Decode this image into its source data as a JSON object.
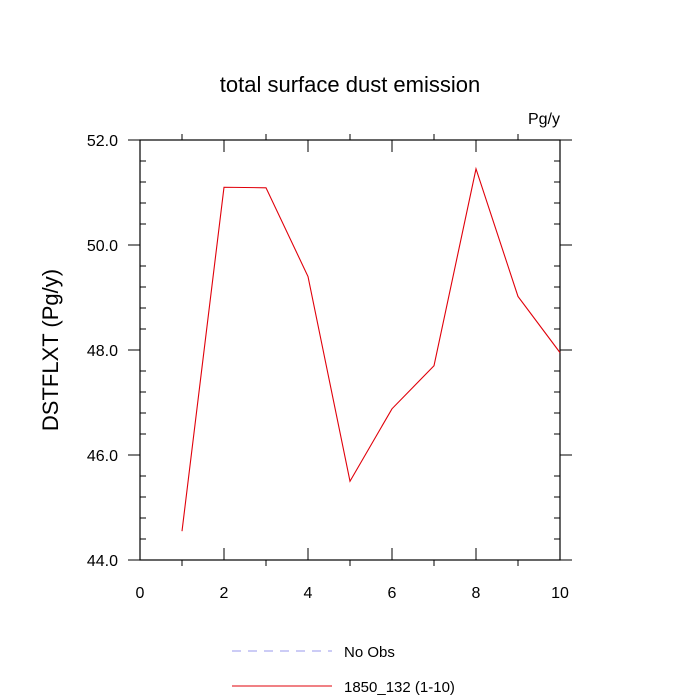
{
  "chart_data": {
    "type": "line",
    "title": "total surface dust emission",
    "units": "Pg/y",
    "xlabel": "",
    "ylabel": "DSTFLXT  (Pg/y)",
    "xlim": [
      0,
      10
    ],
    "ylim": [
      44.0,
      52.0
    ],
    "x_ticks": [
      "0",
      "2",
      "4",
      "6",
      "8",
      "10"
    ],
    "y_ticks": [
      "44.0",
      "46.0",
      "48.0",
      "50.0",
      "52.0"
    ],
    "grid": false,
    "legend_position": "bottom",
    "series": [
      {
        "name": "No Obs",
        "color": "#9a9aee",
        "dashed": true,
        "x": [],
        "values": []
      },
      {
        "name": "1850_132 (1-10)",
        "color": "#e0000a",
        "dashed": false,
        "x": [
          1,
          2,
          3,
          4,
          5,
          6,
          7,
          8,
          9,
          10
        ],
        "values": [
          44.55,
          51.1,
          51.09,
          49.4,
          45.5,
          46.88,
          47.7,
          51.45,
          49.02,
          47.95
        ]
      }
    ]
  }
}
